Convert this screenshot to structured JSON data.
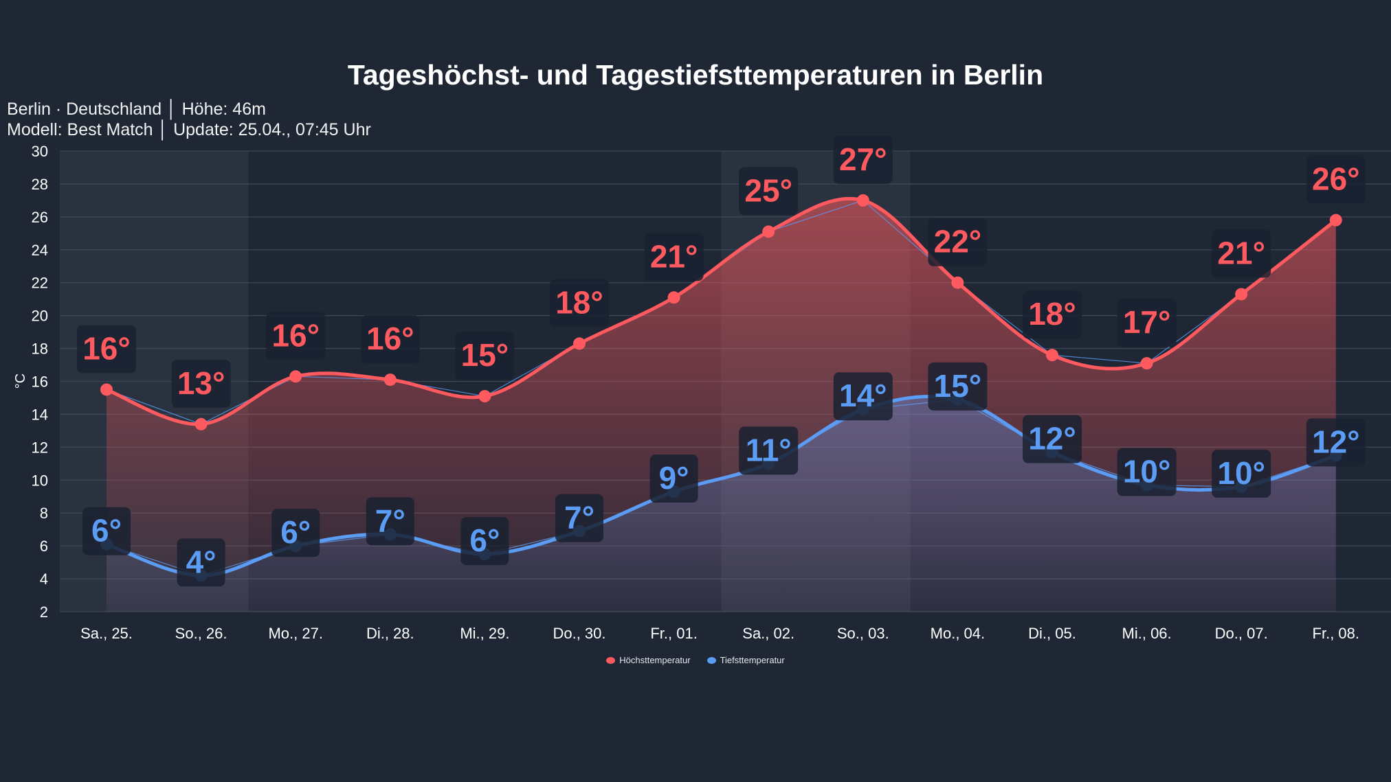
{
  "chart_data": {
    "type": "line",
    "title": "Tageshöchst- und Tagestiefsttemperaturen in Berlin",
    "subtitle_lines": [
      "Berlin · Deutschland │ Höhe: 46m",
      "Modell: Best Match │ Update: 25.04., 07:45 Uhr"
    ],
    "ylabel": "°C",
    "ylim": [
      2,
      30
    ],
    "yticks": [
      2,
      4,
      6,
      8,
      10,
      12,
      14,
      16,
      18,
      20,
      22,
      24,
      26,
      28,
      30
    ],
    "grid": true,
    "legend_position": "bottom",
    "categories": [
      "Sa., 25.",
      "So., 26.",
      "Mo., 27.",
      "Di., 28.",
      "Mi., 29.",
      "Do., 30.",
      "Fr., 01.",
      "Sa., 02.",
      "So., 03.",
      "Mo., 04.",
      "Di., 05.",
      "Mi., 06.",
      "Do., 07.",
      "Fr., 08."
    ],
    "weekend_bands": [
      [
        0,
        1
      ],
      [
        7,
        8
      ]
    ],
    "series": [
      {
        "name": "Höchsttemperatur",
        "color": "#ff5a5f",
        "values": [
          15.5,
          13.4,
          16.3,
          16.1,
          15.1,
          18.3,
          21.1,
          25.1,
          27.0,
          22.0,
          17.6,
          17.1,
          21.3,
          25.8
        ],
        "labels": [
          "16°",
          "13°",
          "16°",
          "16°",
          "15°",
          "18°",
          "21°",
          "25°",
          "27°",
          "22°",
          "18°",
          "17°",
          "21°",
          "26°"
        ]
      },
      {
        "name": "Tiefsttemperatur",
        "color": "#5b9cf5",
        "values": [
          6.1,
          4.2,
          6.0,
          6.7,
          5.5,
          6.9,
          9.3,
          11.0,
          14.3,
          14.9,
          11.7,
          9.7,
          9.6,
          11.5
        ],
        "labels": [
          "6°",
          "4°",
          "6°",
          "7°",
          "6°",
          "7°",
          "9°",
          "11°",
          "14°",
          "15°",
          "12°",
          "10°",
          "10°",
          "12°"
        ]
      }
    ]
  }
}
